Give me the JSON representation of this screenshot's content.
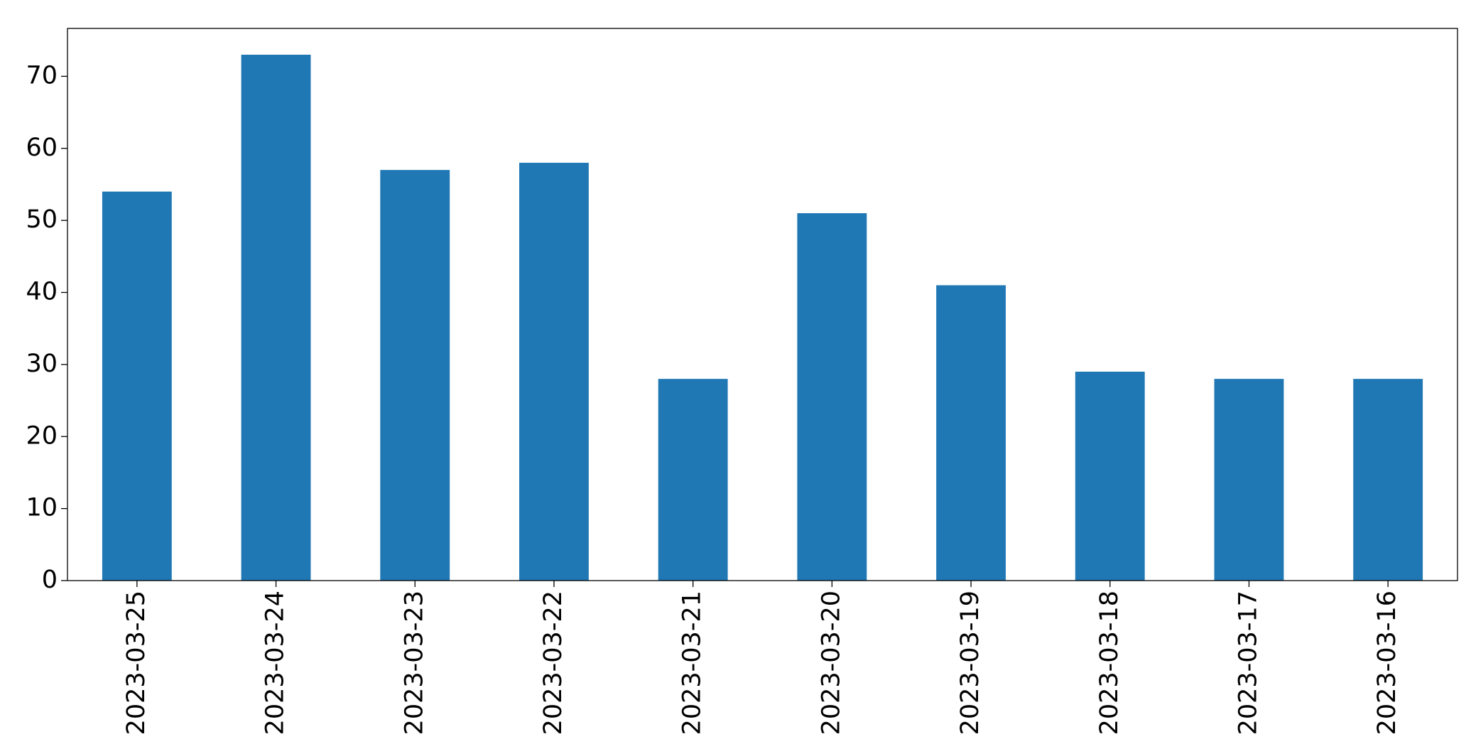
{
  "chart_data": {
    "type": "bar",
    "categories": [
      "2023-03-25",
      "2023-03-24",
      "2023-03-23",
      "2023-03-22",
      "2023-03-21",
      "2023-03-20",
      "2023-03-19",
      "2023-03-18",
      "2023-03-17",
      "2023-03-16"
    ],
    "values": [
      54,
      73,
      57,
      58,
      28,
      51,
      41,
      29,
      28,
      28
    ],
    "color": "#1f77b4",
    "ylim": [
      0,
      76.65
    ],
    "yticks": [
      0,
      10,
      20,
      30,
      40,
      50,
      60,
      70
    ],
    "grid": false
  }
}
